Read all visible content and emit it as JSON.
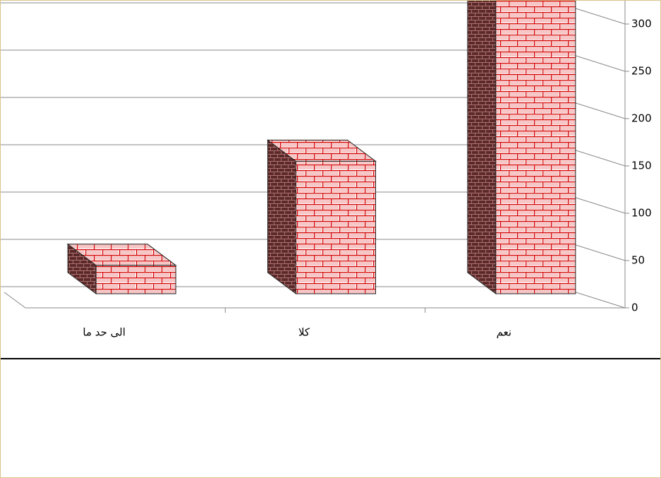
{
  "chart_data": {
    "type": "bar3d",
    "categories": [
      "الى حد ما",
      "كلا",
      "نعم"
    ],
    "values": [
      30,
      140,
      320
    ],
    "color": "#d40000",
    "ylim": [
      0,
      300
    ],
    "yticks": [
      0,
      50,
      100,
      150,
      200,
      250,
      300
    ],
    "grid": true
  }
}
